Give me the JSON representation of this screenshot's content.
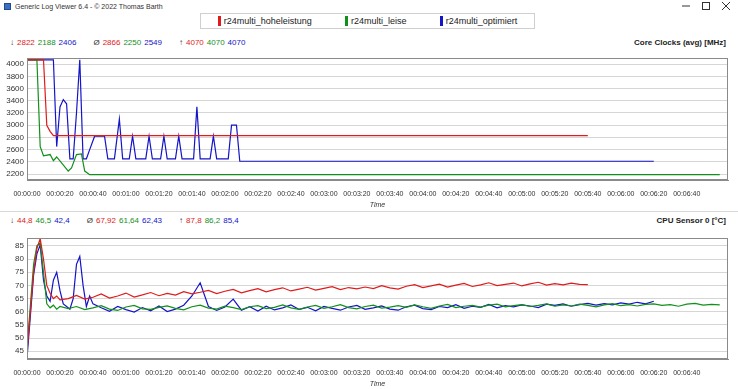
{
  "window": {
    "title": "Generic Log Viewer 6.4 - © 2022 Thomas Barth"
  },
  "chart_data": [
    {
      "type": "line",
      "title": "Core Clocks (avg) [MHz]",
      "x_label": "Time",
      "legend": "top",
      "grid": true,
      "stats": [
        {
          "symbol": "↓",
          "values": [
            2822,
            2188,
            2406
          ]
        },
        {
          "symbol": "Ø",
          "values": [
            2866,
            2250,
            2549
          ]
        },
        {
          "symbol": "↑",
          "values": [
            4070,
            4070,
            4070
          ]
        }
      ],
      "xlim": [
        0,
        425
      ],
      "xticks": [
        {
          "value": 0,
          "label": "00:00:00"
        },
        {
          "value": 20,
          "label": "00:00:20"
        },
        {
          "value": 40,
          "label": "00:00:40"
        },
        {
          "value": 60,
          "label": "00:01:00"
        },
        {
          "value": 80,
          "label": "00:01:20"
        },
        {
          "value": 100,
          "label": "00:01:40"
        },
        {
          "value": 120,
          "label": "00:02:00"
        },
        {
          "value": 140,
          "label": "00:02:20"
        },
        {
          "value": 160,
          "label": "00:02:40"
        },
        {
          "value": 180,
          "label": "00:03:00"
        },
        {
          "value": 200,
          "label": "00:03:20"
        },
        {
          "value": 220,
          "label": "00:03:40"
        },
        {
          "value": 240,
          "label": "00:04:00"
        },
        {
          "value": 260,
          "label": "00:04:20"
        },
        {
          "value": 280,
          "label": "00:04:40"
        },
        {
          "value": 300,
          "label": "00:05:00"
        },
        {
          "value": 320,
          "label": "00:05:20"
        },
        {
          "value": 340,
          "label": "00:05:40"
        },
        {
          "value": 360,
          "label": "00:06:00"
        },
        {
          "value": 380,
          "label": "00:06:20"
        },
        {
          "value": 400,
          "label": "00:06:40"
        }
      ],
      "ylim": [
        2100,
        4100
      ],
      "yticks": [
        2200,
        2400,
        2600,
        2800,
        3000,
        3200,
        3400,
        3600,
        3800,
        4000
      ],
      "series": [
        {
          "name": "r24multi_hoheleistung",
          "color": "#e01b1b",
          "x": [
            0,
            10,
            12,
            14,
            16,
            340
          ],
          "values": [
            4070,
            4070,
            3000,
            2900,
            2830,
            2830
          ]
        },
        {
          "name": "r24multi_leise",
          "color": "#12901a",
          "x": [
            0,
            6,
            8,
            10,
            14,
            16,
            18,
            25,
            27,
            30,
            33,
            35,
            38,
            420
          ],
          "values": [
            4070,
            4070,
            2650,
            2500,
            2520,
            2420,
            2480,
            2250,
            2300,
            2520,
            2530,
            2250,
            2190,
            2190
          ]
        },
        {
          "name": "r24multi_optimiert",
          "color": "#1414c8",
          "x": [
            0,
            16,
            18,
            20,
            22,
            24,
            26,
            28,
            30,
            32,
            34,
            36,
            38,
            41,
            44,
            47,
            49,
            53,
            56,
            58,
            62,
            64,
            66,
            72,
            74,
            76,
            81,
            83,
            85,
            90,
            92,
            94,
            101,
            103,
            105,
            111,
            113,
            115,
            122,
            124,
            127,
            129,
            380
          ],
          "values": [
            4070,
            4070,
            2650,
            3300,
            3420,
            3350,
            2450,
            2450,
            3200,
            4070,
            2450,
            2450,
            2600,
            2820,
            2820,
            2820,
            2450,
            2450,
            3100,
            2450,
            2450,
            2820,
            2450,
            2450,
            2820,
            2450,
            2450,
            2820,
            2450,
            2450,
            2820,
            2450,
            2450,
            3300,
            2450,
            2450,
            2820,
            2450,
            2450,
            3000,
            3000,
            2410,
            2410
          ]
        }
      ]
    },
    {
      "type": "line",
      "title": "CPU Sensor 0 [°C]",
      "x_label": "Time",
      "grid": true,
      "stats": [
        {
          "symbol": "↓",
          "values": [
            44.8,
            46.5,
            42.4
          ],
          "value_labels": [
            "44,8",
            "46,5",
            "42,4"
          ]
        },
        {
          "symbol": "Ø",
          "values": [
            67.92,
            61.64,
            62.43
          ],
          "value_labels": [
            "67,92",
            "61,64",
            "62,43"
          ]
        },
        {
          "symbol": "↑",
          "values": [
            87.8,
            86.2,
            85.4
          ],
          "value_labels": [
            "87,8",
            "86,2",
            "85,4"
          ]
        }
      ],
      "xlim": [
        0,
        425
      ],
      "xticks": [
        {
          "value": 0,
          "label": "00:00:00"
        },
        {
          "value": 20,
          "label": "00:00:20"
        },
        {
          "value": 40,
          "label": "00:00:40"
        },
        {
          "value": 60,
          "label": "00:01:00"
        },
        {
          "value": 80,
          "label": "00:01:20"
        },
        {
          "value": 100,
          "label": "00:01:40"
        },
        {
          "value": 120,
          "label": "00:02:00"
        },
        {
          "value": 140,
          "label": "00:02:20"
        },
        {
          "value": 160,
          "label": "00:02:40"
        },
        {
          "value": 180,
          "label": "00:03:00"
        },
        {
          "value": 200,
          "label": "00:03:20"
        },
        {
          "value": 220,
          "label": "00:03:40"
        },
        {
          "value": 240,
          "label": "00:04:00"
        },
        {
          "value": 260,
          "label": "00:04:20"
        },
        {
          "value": 280,
          "label": "00:04:40"
        },
        {
          "value": 300,
          "label": "00:05:00"
        },
        {
          "value": 320,
          "label": "00:05:20"
        },
        {
          "value": 340,
          "label": "00:05:40"
        },
        {
          "value": 360,
          "label": "00:06:00"
        },
        {
          "value": 380,
          "label": "00:06:20"
        },
        {
          "value": 400,
          "label": "00:06:40"
        }
      ],
      "ylim": [
        42,
        88
      ],
      "yticks": [
        45,
        50,
        55,
        60,
        65,
        70,
        75,
        80,
        85
      ],
      "series": [
        {
          "name": "r24multi_hoheleistung",
          "color": "#e01b1b",
          "x": [
            0,
            2,
            4,
            6,
            8,
            10,
            12,
            14,
            16,
            18,
            20,
            25,
            30,
            35,
            40,
            45,
            50,
            55,
            60,
            65,
            70,
            75,
            80,
            85,
            90,
            95,
            100,
            105,
            110,
            115,
            120,
            125,
            130,
            135,
            140,
            145,
            150,
            155,
            160,
            165,
            170,
            175,
            180,
            185,
            190,
            195,
            200,
            205,
            210,
            215,
            220,
            225,
            230,
            235,
            240,
            245,
            250,
            255,
            260,
            265,
            270,
            275,
            280,
            285,
            290,
            295,
            300,
            305,
            310,
            315,
            320,
            325,
            330,
            335,
            340
          ],
          "values": [
            44.8,
            60,
            75,
            84,
            87.8,
            80,
            70,
            67,
            65,
            66,
            64.5,
            65.0,
            66.2,
            64.8,
            65.5,
            66.8,
            65.2,
            66.0,
            67.1,
            65.6,
            66.4,
            67.3,
            66.1,
            67.0,
            66.3,
            67.6,
            66.8,
            67.4,
            68.1,
            66.9,
            67.8,
            68.5,
            67.2,
            68.0,
            68.8,
            67.6,
            68.4,
            69.1,
            67.9,
            68.6,
            69.3,
            68.2,
            68.9,
            69.5,
            68.4,
            69.2,
            68.7,
            69.4,
            68.8,
            69.9,
            69.1,
            68.6,
            69.7,
            70.3,
            69.2,
            69.8,
            70.5,
            69.4,
            70.1,
            70.8,
            69.6,
            70.2,
            71.0,
            69.9,
            70.4,
            70.9,
            69.8,
            70.6,
            71.2,
            70.1,
            70.7,
            70.2,
            70.9,
            70.4,
            70.3
          ]
        },
        {
          "name": "r24multi_leise",
          "color": "#12901a",
          "x": [
            0,
            2,
            4,
            6,
            8,
            10,
            12,
            14,
            16,
            18,
            20,
            25,
            30,
            35,
            40,
            45,
            50,
            55,
            60,
            65,
            70,
            75,
            80,
            85,
            90,
            95,
            100,
            105,
            110,
            115,
            120,
            125,
            130,
            135,
            140,
            145,
            150,
            155,
            160,
            165,
            170,
            175,
            180,
            185,
            190,
            195,
            200,
            205,
            210,
            215,
            220,
            225,
            230,
            235,
            240,
            245,
            250,
            255,
            260,
            265,
            270,
            275,
            280,
            285,
            290,
            295,
            300,
            305,
            310,
            315,
            320,
            325,
            330,
            335,
            340,
            345,
            350,
            355,
            360,
            365,
            370,
            375,
            380,
            385,
            390,
            395,
            400,
            405,
            410,
            415,
            420
          ],
          "values": [
            46.5,
            62,
            78,
            85,
            86.2,
            75,
            63,
            61.5,
            62.5,
            61,
            62,
            61.2,
            62.0,
            60.8,
            61.5,
            62.3,
            61.0,
            60.5,
            61.8,
            62.4,
            61.1,
            60.9,
            61.7,
            62.2,
            61.3,
            60.7,
            61.9,
            62.5,
            61.4,
            61.0,
            62.1,
            61.6,
            60.8,
            61.9,
            62.3,
            61.2,
            61.7,
            62.6,
            61.5,
            60.9,
            61.8,
            62.4,
            61.3,
            61.9,
            62.7,
            61.6,
            61.1,
            62.0,
            62.5,
            61.4,
            61.8,
            62.3,
            61.7,
            62.6,
            61.9,
            61.3,
            62.2,
            62.8,
            61.6,
            62.1,
            62.4,
            61.8,
            62.5,
            62.9,
            61.9,
            62.3,
            62.7,
            62.0,
            62.4,
            63.0,
            62.1,
            62.6,
            62.2,
            62.9,
            62.4,
            61.9,
            62.6,
            63.1,
            62.3,
            62.7,
            62.2,
            62.8,
            63.0,
            62.4,
            62.7,
            62.1,
            62.9,
            63.2,
            62.5,
            62.8,
            62.6
          ]
        },
        {
          "name": "r24multi_optimiert",
          "color": "#1414c8",
          "x": [
            0,
            2,
            4,
            6,
            8,
            10,
            12,
            14,
            16,
            18,
            20,
            22,
            24,
            26,
            28,
            30,
            32,
            34,
            36,
            38,
            40,
            45,
            50,
            55,
            60,
            65,
            70,
            75,
            80,
            85,
            90,
            95,
            100,
            105,
            110,
            115,
            120,
            125,
            130,
            135,
            140,
            145,
            150,
            155,
            160,
            165,
            170,
            175,
            180,
            185,
            190,
            195,
            200,
            205,
            210,
            215,
            220,
            225,
            230,
            235,
            240,
            245,
            250,
            255,
            260,
            265,
            270,
            275,
            280,
            285,
            290,
            295,
            300,
            305,
            310,
            315,
            320,
            325,
            330,
            335,
            340,
            345,
            350,
            355,
            360,
            365,
            370,
            375,
            380
          ],
          "values": [
            42.4,
            58,
            74,
            82,
            85.4,
            72,
            66,
            64,
            72,
            75,
            68,
            63,
            62,
            61,
            65,
            78,
            81,
            70,
            62,
            66,
            63,
            61.5,
            60.2,
            62.0,
            60.8,
            59.9,
            61.6,
            60.4,
            62.2,
            60.1,
            61.0,
            62.5,
            66.0,
            71.0,
            62.0,
            60.5,
            61.8,
            64.8,
            60.6,
            61.9,
            60.3,
            62.1,
            60.7,
            61.5,
            62.6,
            60.9,
            61.7,
            60.4,
            62.0,
            61.3,
            60.6,
            61.8,
            62.4,
            60.9,
            61.5,
            62.2,
            61.0,
            60.6,
            61.9,
            62.5,
            61.2,
            60.8,
            62.0,
            61.6,
            62.7,
            61.3,
            62.1,
            61.7,
            62.8,
            61.5,
            62.3,
            61.9,
            62.6,
            62.2,
            61.6,
            62.9,
            62.4,
            63.0,
            62.1,
            62.7,
            63.2,
            62.5,
            63.1,
            62.6,
            63.4,
            62.9,
            63.6,
            63.0,
            64.0
          ]
        }
      ]
    }
  ]
}
